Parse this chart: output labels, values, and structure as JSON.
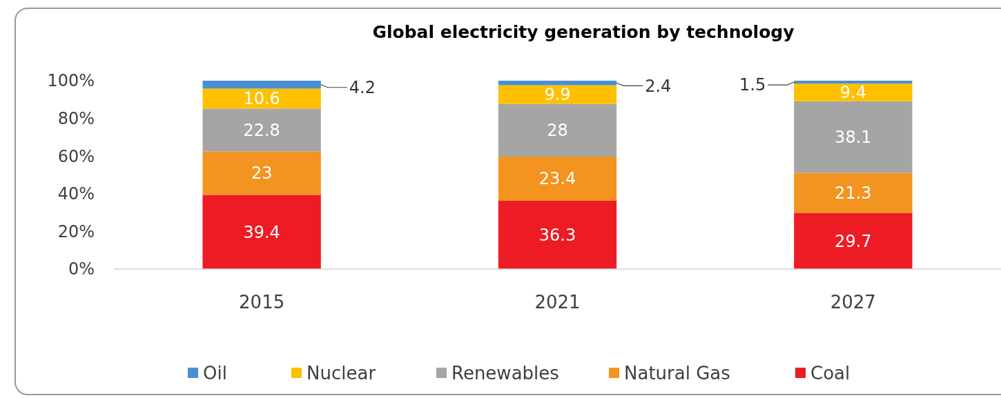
{
  "chart_data": {
    "type": "bar",
    "title": "Global electricity generation by technology",
    "categories": [
      "2015",
      "2021",
      "2027"
    ],
    "stacked": true,
    "series": [
      {
        "name": "Coal",
        "color": "#ed1c24",
        "values": [
          39.4,
          36.3,
          29.7
        ]
      },
      {
        "name": "Natural Gas",
        "color": "#f39320",
        "values": [
          23,
          23.4,
          21.3
        ]
      },
      {
        "name": "Renewables",
        "color": "#a5a5a5",
        "values": [
          22.8,
          28,
          38.1
        ]
      },
      {
        "name": "Nuclear",
        "color": "#ffc000",
        "values": [
          10.6,
          9.9,
          9.4
        ]
      },
      {
        "name": "Oil",
        "color": "#4a8fd0",
        "values": [
          4.2,
          2.4,
          1.5
        ]
      }
    ],
    "ylim": [
      0,
      100
    ],
    "yticks": [
      {
        "value": 0,
        "label": "0%"
      },
      {
        "value": 20,
        "label": "20%"
      },
      {
        "value": 40,
        "label": "40%"
      },
      {
        "value": 60,
        "label": "60%"
      },
      {
        "value": 80,
        "label": "80%"
      },
      {
        "value": 100,
        "label": "100%"
      }
    ],
    "data_labels": true,
    "legend": "bottom",
    "grid": false
  }
}
